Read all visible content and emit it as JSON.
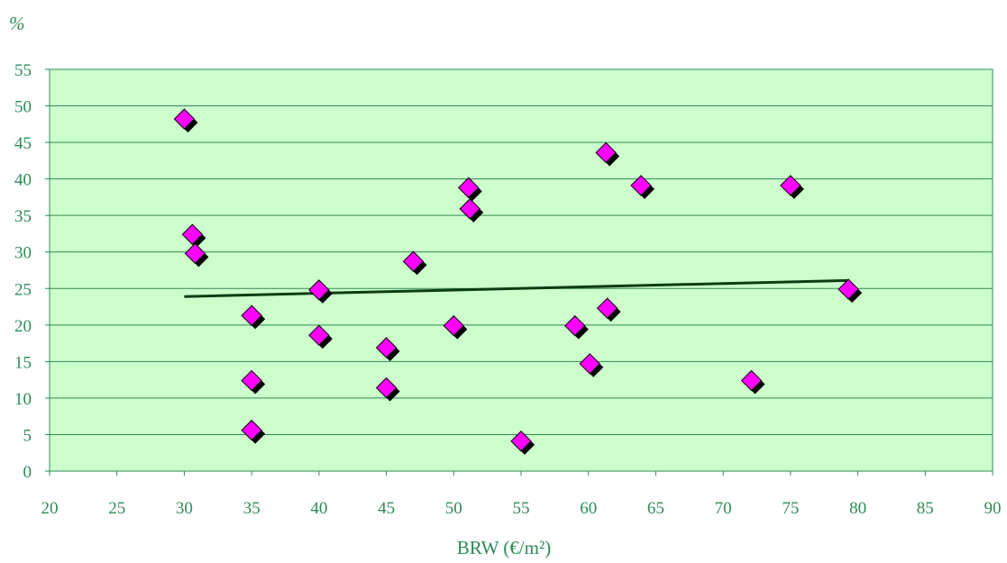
{
  "colors": {
    "plot_background": "#ccffcc",
    "gridline": "#2e8b57",
    "axis": "#2e8b57",
    "text": "#2e8b57",
    "marker_fill": "#ff00ff",
    "marker_shadow": "#000000",
    "trendline": "#0b3d12"
  },
  "chart_data": {
    "type": "scatter",
    "title": "",
    "xlabel": "BRW (€/m²)",
    "ylabel": "%",
    "xlim": [
      20,
      90
    ],
    "ylim": [
      0,
      55
    ],
    "x_ticks": [
      20,
      25,
      30,
      35,
      40,
      45,
      50,
      55,
      60,
      65,
      70,
      75,
      80,
      85,
      90
    ],
    "y_ticks": [
      0,
      5,
      10,
      15,
      20,
      25,
      30,
      35,
      40,
      45,
      50,
      55
    ],
    "grid": "horizontal",
    "marker": "diamond",
    "points": [
      {
        "x": 30,
        "y": 48.2
      },
      {
        "x": 30.6,
        "y": 32.4
      },
      {
        "x": 30.8,
        "y": 29.8
      },
      {
        "x": 35,
        "y": 21.3
      },
      {
        "x": 35,
        "y": 12.4
      },
      {
        "x": 35,
        "y": 5.6
      },
      {
        "x": 40,
        "y": 24.8
      },
      {
        "x": 40,
        "y": 18.6
      },
      {
        "x": 45,
        "y": 16.9
      },
      {
        "x": 45,
        "y": 11.4
      },
      {
        "x": 47,
        "y": 28.7
      },
      {
        "x": 50,
        "y": 19.9
      },
      {
        "x": 51.1,
        "y": 38.8
      },
      {
        "x": 51.2,
        "y": 35.9
      },
      {
        "x": 55,
        "y": 4.1
      },
      {
        "x": 59,
        "y": 19.9
      },
      {
        "x": 60.1,
        "y": 14.7
      },
      {
        "x": 61.3,
        "y": 43.6
      },
      {
        "x": 61.4,
        "y": 22.3
      },
      {
        "x": 63.9,
        "y": 39.1
      },
      {
        "x": 72.1,
        "y": 12.4
      },
      {
        "x": 75,
        "y": 39.1
      },
      {
        "x": 79.3,
        "y": 24.9
      }
    ],
    "trendline": {
      "x": [
        30,
        79.3
      ],
      "y": [
        23.9,
        26.1
      ]
    }
  }
}
